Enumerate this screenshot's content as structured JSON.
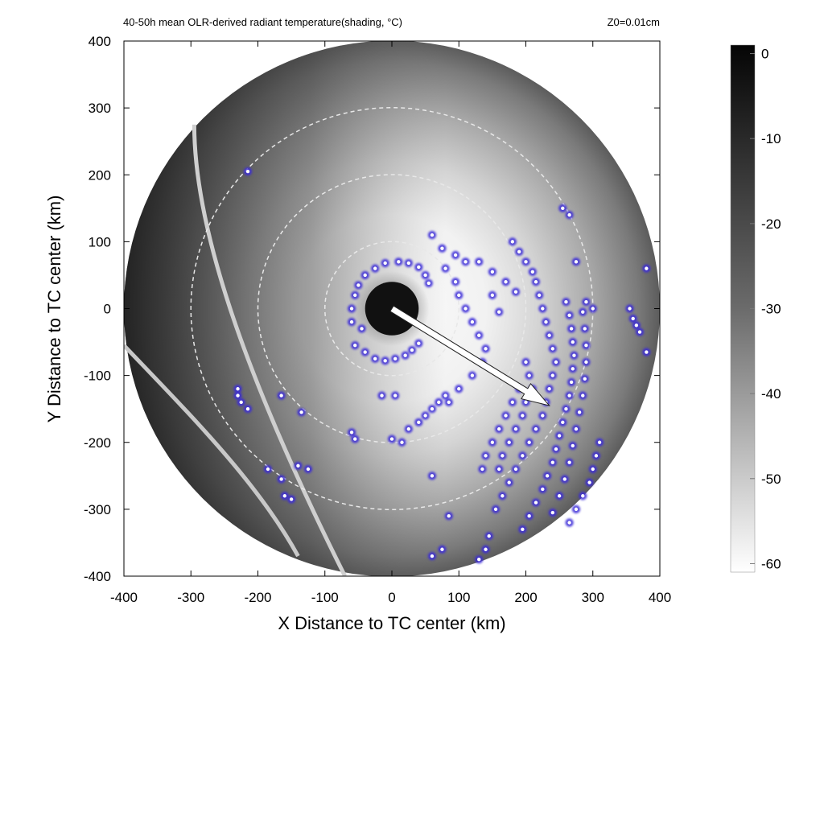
{
  "chart_data": {
    "type": "heatmap",
    "title": "40-50h mean OLR-derived radiant temperature(shading, °C)",
    "subtitle": "Z0=0.01cm",
    "xlabel": "X Distance to TC center (km)",
    "ylabel": "Y Distance to TC center (km)",
    "xlim": [
      -400,
      400
    ],
    "ylim": [
      -400,
      400
    ],
    "x_ticks": [
      "-400",
      "-300",
      "-200",
      "-100",
      "0",
      "100",
      "200",
      "300",
      "400"
    ],
    "y_ticks": [
      "400",
      "300",
      "200",
      "100",
      "0",
      "-100",
      "-200",
      "-300",
      "-400"
    ],
    "domain_radius_km": 400,
    "range_rings_km": [
      100,
      200,
      300
    ],
    "colorbar": {
      "label_ticks": [
        "0",
        "-10",
        "-20",
        "-30",
        "-40",
        "-50",
        "-60"
      ],
      "min": -61,
      "max": 1,
      "colors": {
        "warm": "#ffffff",
        "cold": "#050505"
      }
    },
    "shading_field": {
      "eye_center_km": [
        0,
        0
      ],
      "eye_radius_km": 40,
      "eye_temp_c": -8,
      "eyewall_temp_c": -60,
      "outer_temp_c": -25
    },
    "shear_vector": {
      "from_km": [
        0,
        0
      ],
      "to_km": [
        235,
        -145
      ],
      "color": "#ffffff"
    },
    "marker_color": "#3a2bd8",
    "markers_km": [
      [
        -60,
        0
      ],
      [
        -55,
        20
      ],
      [
        -50,
        35
      ],
      [
        -40,
        50
      ],
      [
        -25,
        60
      ],
      [
        -10,
        68
      ],
      [
        10,
        70
      ],
      [
        25,
        68
      ],
      [
        40,
        62
      ],
      [
        50,
        50
      ],
      [
        55,
        38
      ],
      [
        -55,
        -55
      ],
      [
        -40,
        -65
      ],
      [
        -25,
        -75
      ],
      [
        -10,
        -78
      ],
      [
        5,
        -75
      ],
      [
        20,
        -70
      ],
      [
        30,
        -62
      ],
      [
        40,
        -52
      ],
      [
        -45,
        -30
      ],
      [
        -60,
        -20
      ],
      [
        60,
        110
      ],
      [
        75,
        90
      ],
      [
        95,
        80
      ],
      [
        110,
        70
      ],
      [
        130,
        70
      ],
      [
        150,
        55
      ],
      [
        170,
        40
      ],
      [
        185,
        25
      ],
      [
        160,
        -5
      ],
      [
        150,
        20
      ],
      [
        80,
        60
      ],
      [
        95,
        40
      ],
      [
        100,
        20
      ],
      [
        110,
        0
      ],
      [
        120,
        -20
      ],
      [
        130,
        -40
      ],
      [
        140,
        -60
      ],
      [
        135,
        -80
      ],
      [
        120,
        -100
      ],
      [
        100,
        -120
      ],
      [
        85,
        -140
      ],
      [
        180,
        100
      ],
      [
        190,
        85
      ],
      [
        200,
        70
      ],
      [
        210,
        55
      ],
      [
        215,
        40
      ],
      [
        220,
        20
      ],
      [
        225,
        0
      ],
      [
        230,
        -20
      ],
      [
        235,
        -40
      ],
      [
        240,
        -60
      ],
      [
        245,
        -80
      ],
      [
        240,
        -100
      ],
      [
        235,
        -120
      ],
      [
        230,
        -140
      ],
      [
        225,
        -160
      ],
      [
        215,
        -180
      ],
      [
        205,
        -200
      ],
      [
        195,
        -220
      ],
      [
        185,
        -240
      ],
      [
        175,
        -260
      ],
      [
        165,
        -280
      ],
      [
        155,
        -300
      ],
      [
        260,
        10
      ],
      [
        265,
        -10
      ],
      [
        268,
        -30
      ],
      [
        270,
        -50
      ],
      [
        272,
        -70
      ],
      [
        270,
        -90
      ],
      [
        268,
        -110
      ],
      [
        265,
        -130
      ],
      [
        260,
        -150
      ],
      [
        255,
        -170
      ],
      [
        250,
        -190
      ],
      [
        245,
        -210
      ],
      [
        240,
        -230
      ],
      [
        232,
        -250
      ],
      [
        225,
        -270
      ],
      [
        215,
        -290
      ],
      [
        205,
        -310
      ],
      [
        195,
        -330
      ],
      [
        285,
        -5
      ],
      [
        288,
        -30
      ],
      [
        290,
        -55
      ],
      [
        290,
        -80
      ],
      [
        288,
        -105
      ],
      [
        285,
        -130
      ],
      [
        280,
        -155
      ],
      [
        275,
        -180
      ],
      [
        270,
        -205
      ],
      [
        265,
        -230
      ],
      [
        258,
        -255
      ],
      [
        250,
        -280
      ],
      [
        240,
        -305
      ],
      [
        200,
        -80
      ],
      [
        205,
        -100
      ],
      [
        190,
        -120
      ],
      [
        180,
        -140
      ],
      [
        170,
        -160
      ],
      [
        160,
        -180
      ],
      [
        150,
        -200
      ],
      [
        140,
        -220
      ],
      [
        135,
        -240
      ],
      [
        210,
        -120
      ],
      [
        200,
        -140
      ],
      [
        195,
        -160
      ],
      [
        185,
        -180
      ],
      [
        175,
        -200
      ],
      [
        165,
        -220
      ],
      [
        160,
        -240
      ],
      [
        310,
        -200
      ],
      [
        305,
        -220
      ],
      [
        300,
        -240
      ],
      [
        295,
        -260
      ],
      [
        285,
        -280
      ],
      [
        275,
        -300
      ],
      [
        265,
        -320
      ],
      [
        255,
        150
      ],
      [
        265,
        140
      ],
      [
        275,
        70
      ],
      [
        290,
        10
      ],
      [
        300,
        0
      ],
      [
        355,
        0
      ],
      [
        360,
        -15
      ],
      [
        365,
        -25
      ],
      [
        370,
        -35
      ],
      [
        380,
        60
      ],
      [
        380,
        -65
      ],
      [
        60,
        -250
      ],
      [
        85,
        -310
      ],
      [
        75,
        -360
      ],
      [
        60,
        -370
      ],
      [
        145,
        -340
      ],
      [
        140,
        -360
      ],
      [
        130,
        -375
      ],
      [
        40,
        -170
      ],
      [
        50,
        -160
      ],
      [
        60,
        -150
      ],
      [
        70,
        -140
      ],
      [
        80,
        -130
      ],
      [
        25,
        -180
      ],
      [
        15,
        -200
      ],
      [
        0,
        -195
      ],
      [
        -15,
        -130
      ],
      [
        5,
        -130
      ],
      [
        -215,
        205
      ],
      [
        -230,
        -120
      ],
      [
        -225,
        -140
      ],
      [
        -215,
        -150
      ],
      [
        -165,
        -130
      ],
      [
        -135,
        -155
      ],
      [
        -185,
        -240
      ],
      [
        -165,
        -255
      ],
      [
        -160,
        -280
      ],
      [
        -150,
        -285
      ],
      [
        -140,
        -235
      ],
      [
        -125,
        -240
      ],
      [
        -60,
        -185
      ],
      [
        -55,
        -195
      ],
      [
        -230,
        -130
      ]
    ]
  }
}
